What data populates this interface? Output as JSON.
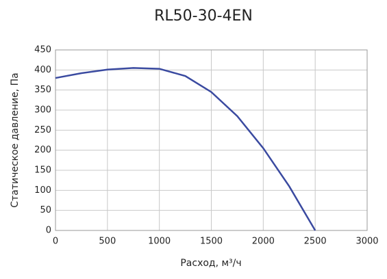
{
  "chart_data": {
    "type": "line",
    "title": "RL50-30-4EN",
    "x_label": "Расход, м³/ч",
    "y_label": "Статическое давление, Па",
    "x": [
      0,
      250,
      500,
      750,
      1000,
      1250,
      1500,
      1750,
      2000,
      2250,
      2500
    ],
    "series": [
      {
        "name": "RL50-30-4EN",
        "color": "#3a4aa0",
        "values": [
          380,
          392,
          401,
          405,
          403,
          385,
          345,
          285,
          205,
          110,
          0
        ]
      }
    ],
    "xlim": [
      0,
      3000
    ],
    "xticks": [
      0,
      500,
      1000,
      1500,
      2000,
      2500,
      3000
    ],
    "ylim": [
      0,
      450
    ],
    "yticks": [
      0,
      50,
      100,
      150,
      200,
      250,
      300,
      350,
      400,
      450
    ],
    "grid": true,
    "legend": false
  }
}
